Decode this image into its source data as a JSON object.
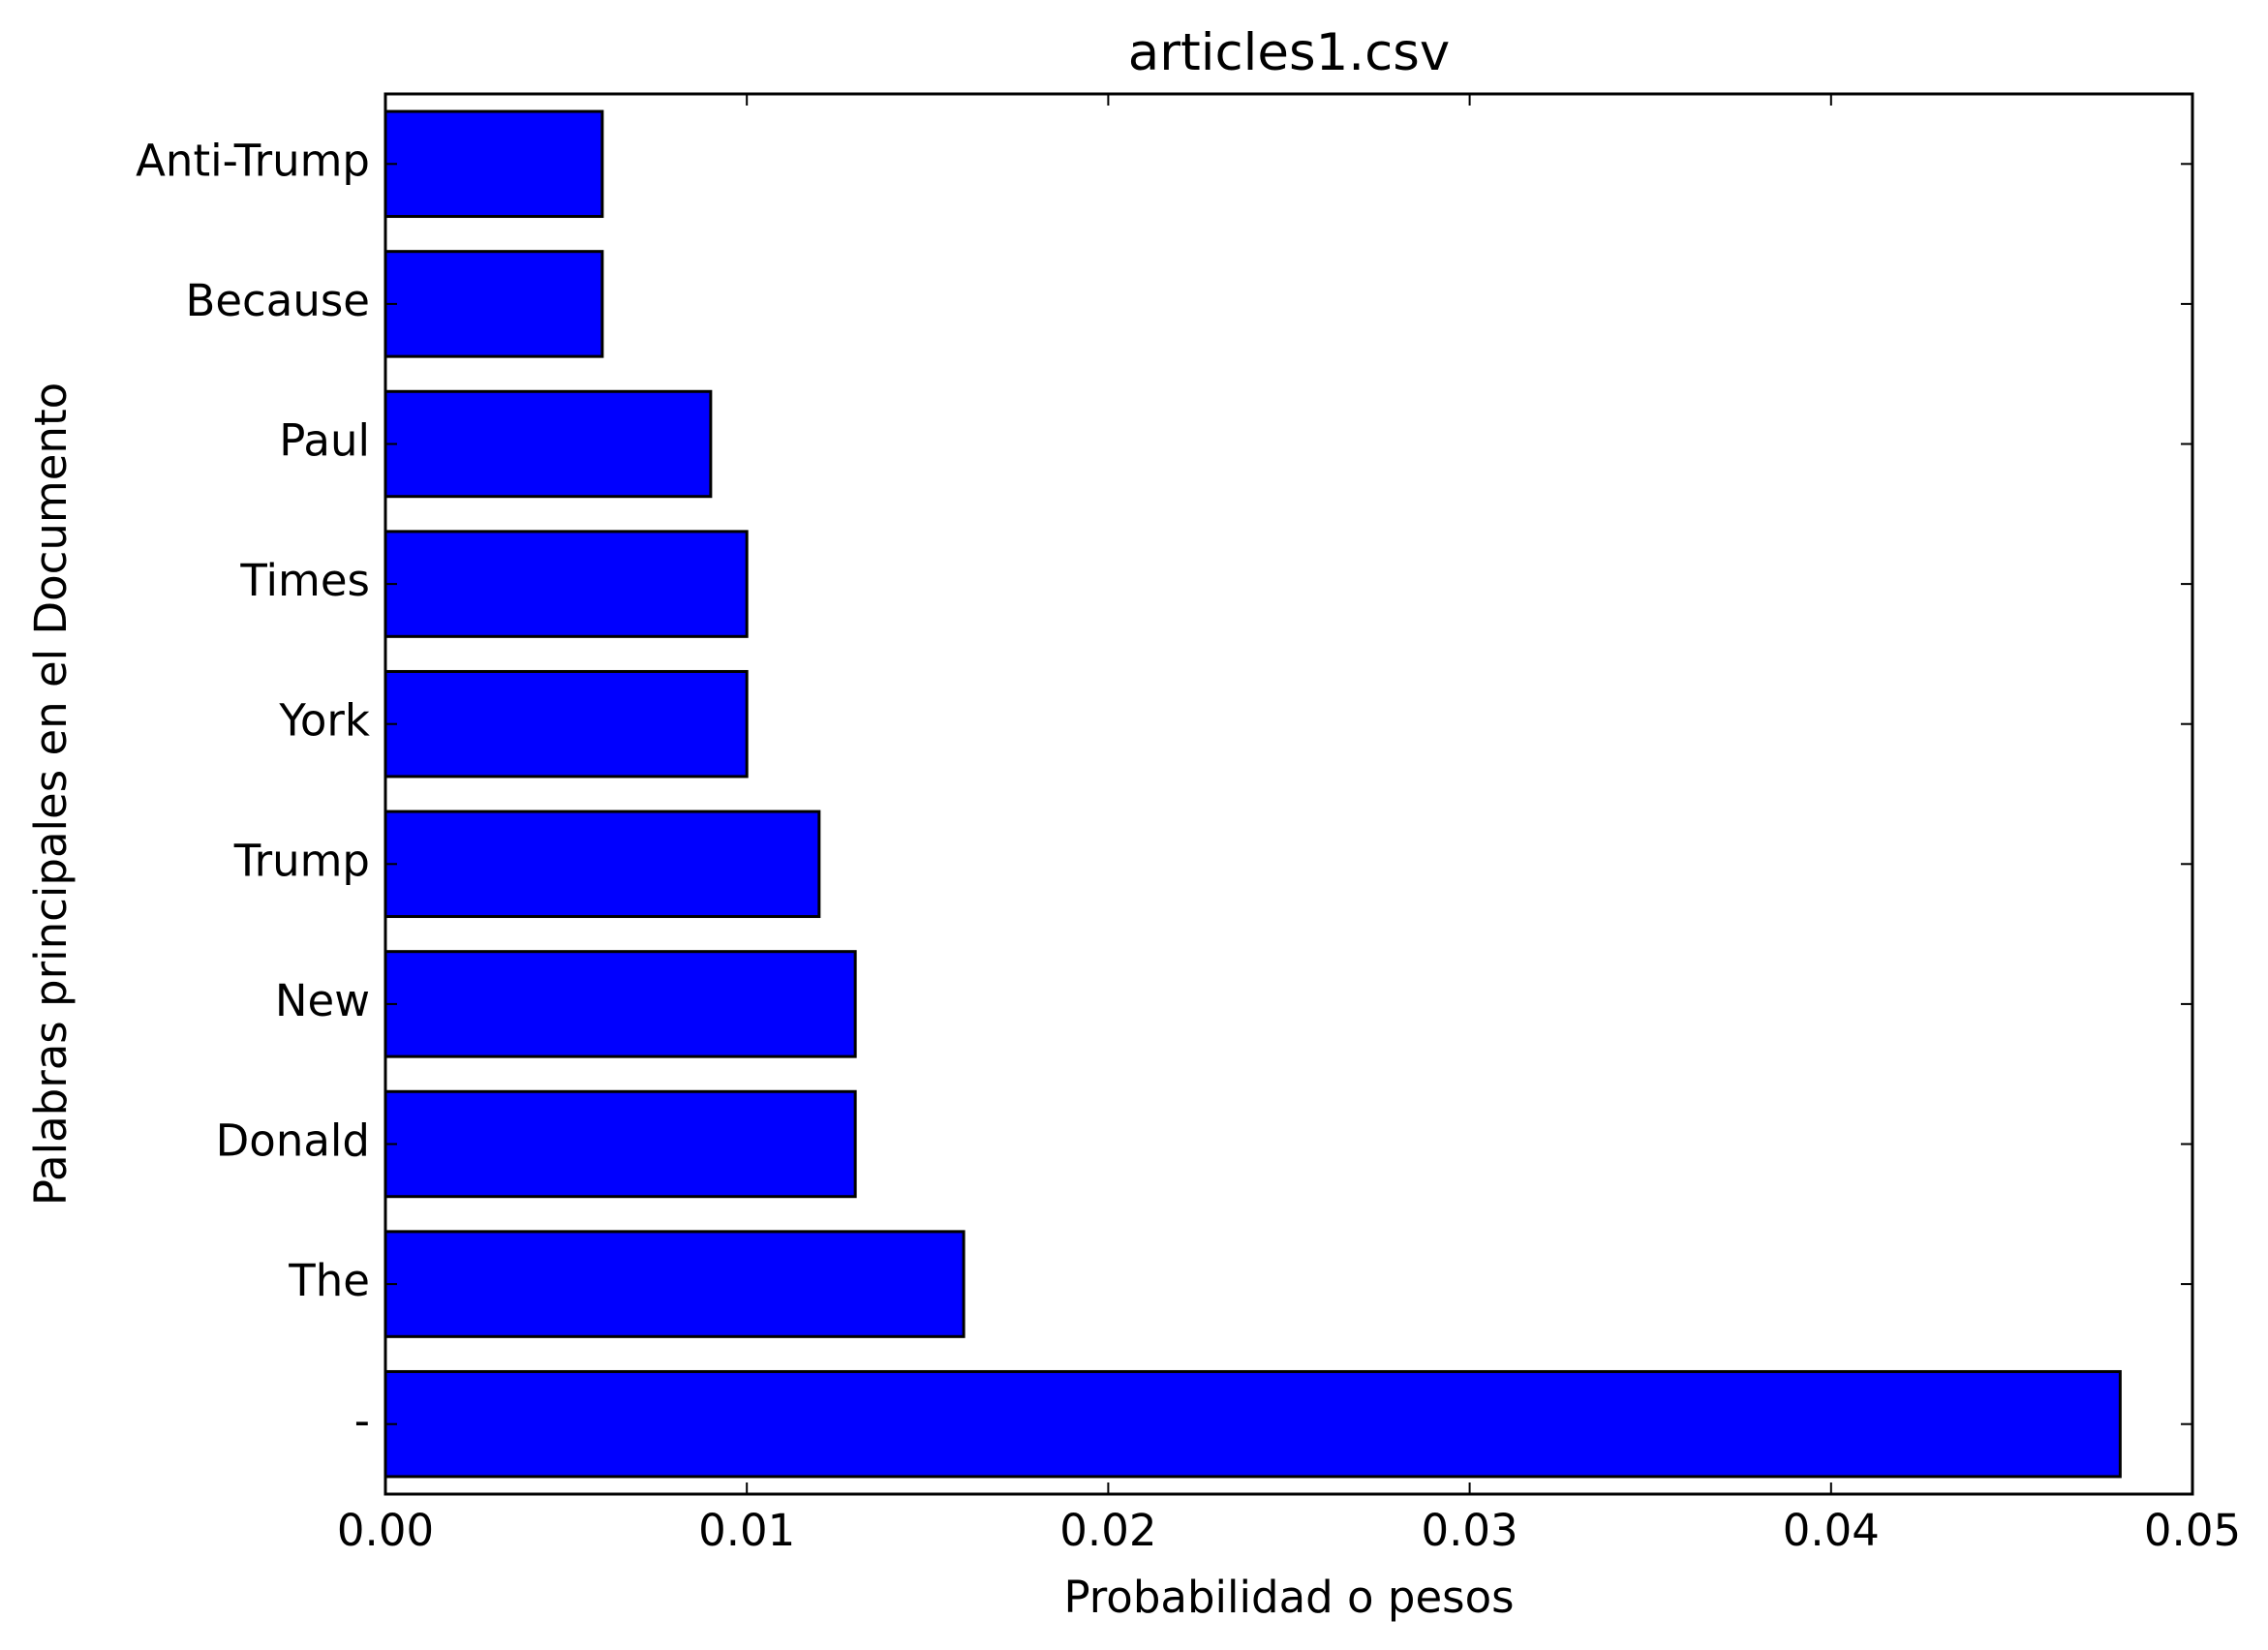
{
  "chart_data": {
    "type": "bar",
    "orientation": "horizontal",
    "title": "articles1.csv",
    "xlabel": "Probabilidad o pesos",
    "ylabel": "Palabras principales en el Documento",
    "categories": [
      "Anti-Trump",
      "Because",
      "Paul",
      "Times",
      "York",
      "Trump",
      "New",
      "Donald",
      "The",
      "-"
    ],
    "values": [
      0.006,
      0.006,
      0.009,
      0.01,
      0.01,
      0.012,
      0.013,
      0.013,
      0.016,
      0.048
    ],
    "xlim": [
      0,
      0.05
    ],
    "xticks": [
      0.0,
      0.01,
      0.02,
      0.03,
      0.04,
      0.05
    ],
    "xtick_labels": [
      "0.00",
      "0.01",
      "0.02",
      "0.03",
      "0.04",
      "0.05"
    ],
    "grid": false,
    "bar_color": "#0000ff",
    "edge_color": "#000000"
  }
}
